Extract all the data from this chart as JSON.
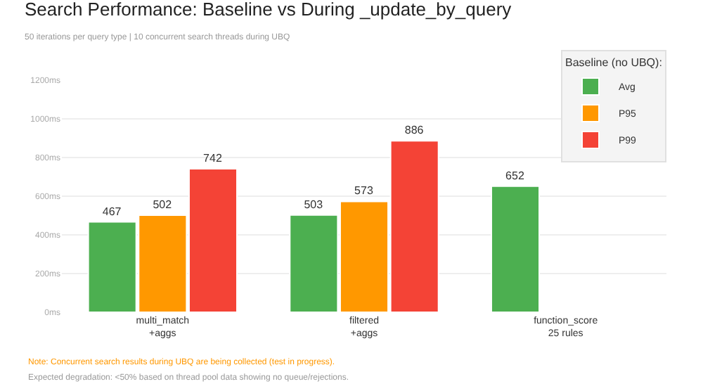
{
  "chart_data": {
    "type": "bar",
    "title": "Search Performance: Baseline vs During _update_by_query",
    "subtitle": "50 iterations per query type | 10 concurrent search threads during UBQ",
    "categories": [
      "multi_match\n+aggs",
      "filtered\n+aggs",
      "function_score\n25 rules"
    ],
    "series": [
      {
        "name": "Avg",
        "color": "#4caf50",
        "values": [
          467,
          503,
          652
        ]
      },
      {
        "name": "P95",
        "color": "#ff9800",
        "values": [
          502,
          573,
          null
        ]
      },
      {
        "name": "P99",
        "color": "#f44336",
        "values": [
          742,
          886,
          null
        ]
      }
    ],
    "legend_title": "Baseline (no UBQ):",
    "legend": "top right",
    "ylim": [
      0,
      1200
    ],
    "yticks": [
      {
        "value": 0,
        "label": "0ms"
      },
      {
        "value": 200,
        "label": "200ms"
      },
      {
        "value": 400,
        "label": "400ms"
      },
      {
        "value": 600,
        "label": "600ms"
      },
      {
        "value": 800,
        "label": "800ms"
      },
      {
        "value": 1000,
        "label": "1000ms"
      },
      {
        "value": 1200,
        "label": "1200ms"
      }
    ],
    "grid": "y",
    "data_labels": true,
    "annotations": [
      "Note: Concurrent search results during UBQ are being collected (test in progress).",
      "Expected degradation: <50% based on thread pool data showing no queue/rejections."
    ]
  }
}
